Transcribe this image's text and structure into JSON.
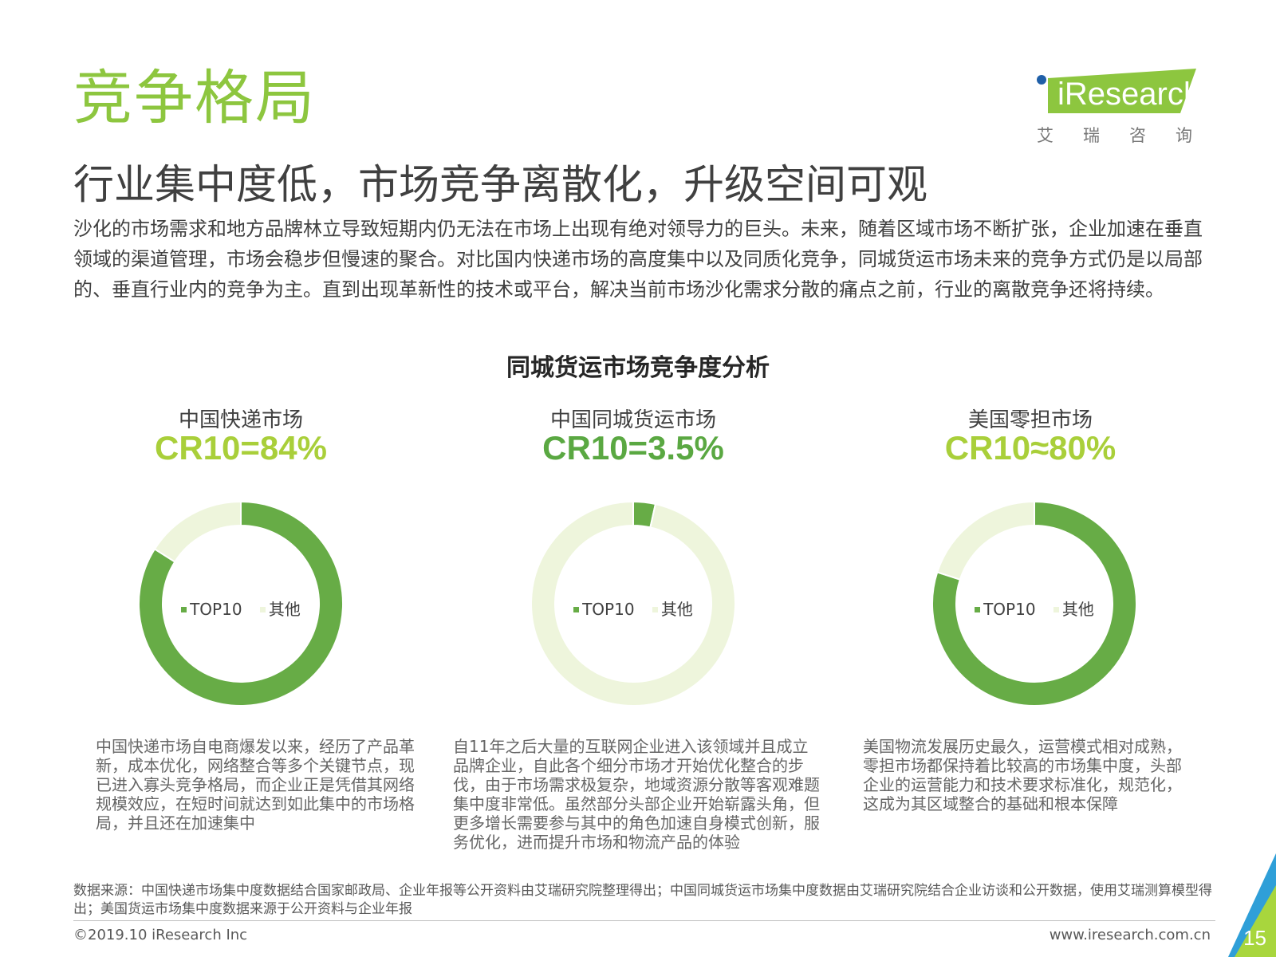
{
  "header": {
    "section_title": "竞争格局",
    "headline": "行业集中度低，市场竞争离散化，升级空间可观",
    "intro": "沙化的市场需求和地方品牌林立导致短期内仍无法在市场上出现有绝对领导力的巨头。未来，随着区域市场不断扩张，企业加速在垂直领域的渠道管理，市场会稳步但慢速的聚合。对比国内快递市场的高度集中以及同质化竞争，同城货运市场未来的竞争方式仍是以局部的、垂直行业内的竞争为主。直到出现革新性的技术或平台，解决当前市场沙化需求分散的痛点之前，行业的离散竞争还将持续。"
  },
  "logo": {
    "wordmark": "iResearch",
    "chinese": "艾瑞咨询",
    "colors": {
      "green": "#8dc63f",
      "dot": "#1f5fa8"
    }
  },
  "chart_title": "同城货运市场竞争度分析",
  "chart_data": [
    {
      "type": "pie",
      "market": "中国快递市场",
      "headline": "CR10=84%",
      "labels": [
        "TOP10",
        "其他"
      ],
      "values": [
        84,
        16
      ],
      "colors": [
        "#67ac46",
        "#eef5dc"
      ],
      "headline_color": "#a9cf3a",
      "description": "中国快递市场自电商爆发以来，经历了产品革新，成本优化，网络整合等多个关键节点，现已进入寡头竞争格局，而企业正是凭借其网络规模效应，在短时间就达到如此集中的市场格局，并且还在加速集中"
    },
    {
      "type": "pie",
      "market": "中国同城货运市场",
      "headline": "CR10=3.5%",
      "labels": [
        "TOP10",
        "其他"
      ],
      "values": [
        3.5,
        96.5
      ],
      "colors": [
        "#67ac46",
        "#eef5dc"
      ],
      "headline_color": "#5aa842",
      "description": "自11年之后大量的互联网企业进入该领域并且成立品牌企业，自此各个细分市场才开始优化整合的步伐，由于市场需求极复杂，地域资源分散等客观难题集中度非常低。虽然部分头部企业开始崭露头角，但更多增长需要参与其中的角色加速自身模式创新，服务优化，进而提升市场和物流产品的体验"
    },
    {
      "type": "pie",
      "market": "美国零担市场",
      "headline": "CR10≈80%",
      "labels": [
        "TOP10",
        "其他"
      ],
      "values": [
        80,
        20
      ],
      "colors": [
        "#67ac46",
        "#eef5dc"
      ],
      "headline_color": "#a9cf3a",
      "description": "美国物流发展历史最久，运营模式相对成熟，零担市场都保持着比较高的市场集中度，头部企业的运营能力和技术要求标准化，规范化，这成为其区域整合的基础和根本保障"
    }
  ],
  "footer": {
    "source": "数据来源：中国快递市场集中度数据结合国家邮政局、企业年报等公开资料由艾瑞研究院整理得出；中国同城货运市场集中度数据由艾瑞研究院结合企业访谈和公开数据，使用艾瑞测算模型得出；美国货运市场集中度数据来源于公开资料与企业年报",
    "copyright": "©2019.10 iResearch Inc",
    "website": "www.iresearch.com.cn",
    "page_number": "15",
    "corner_colors": [
      "#2f9fd8",
      "#a8d63d"
    ]
  }
}
